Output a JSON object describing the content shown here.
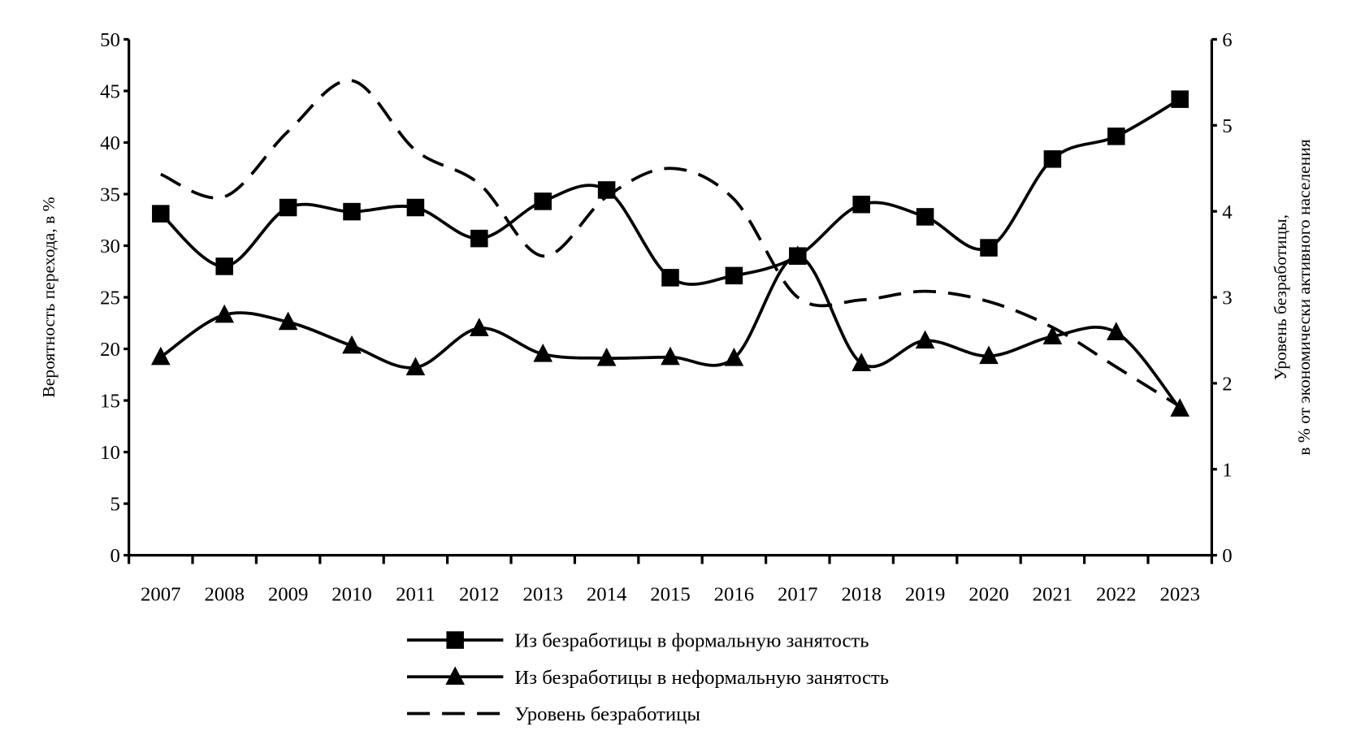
{
  "chart_data": {
    "type": "line",
    "title": "",
    "x": [
      "2007",
      "2008",
      "2009",
      "2010",
      "2011",
      "2012",
      "2013",
      "2014",
      "2015",
      "2016",
      "2017",
      "2018",
      "2019",
      "2020",
      "2021",
      "2022",
      "2023"
    ],
    "ylabel": "Вероятность перехода, в %",
    "ylabel_right_line1": "Уровень безработицы,",
    "ylabel_right_line2": "в % от экономически активного населения",
    "ylim": [
      0,
      50
    ],
    "y_ticks": [
      "0",
      "5",
      "10",
      "15",
      "20",
      "25",
      "30",
      "35",
      "40",
      "45",
      "50"
    ],
    "ylim_right": [
      0,
      6
    ],
    "y_right_ticks": [
      "0",
      "1",
      "2",
      "3",
      "4",
      "5",
      "6"
    ],
    "grid": false,
    "legend_placement": "bottom",
    "series": [
      {
        "name": "Из безработицы в формальную занятость",
        "axis": "left",
        "marker": "square",
        "style": "solid",
        "values": [
          33.1,
          28.0,
          33.7,
          33.3,
          33.7,
          30.7,
          34.3,
          35.4,
          26.9,
          27.1,
          29.0,
          34.0,
          32.8,
          29.8,
          38.4,
          40.6,
          44.2
        ]
      },
      {
        "name": "Из безработицы в неформальную занятость",
        "axis": "left",
        "marker": "triangle",
        "style": "solid",
        "values": [
          19.2,
          23.3,
          22.6,
          20.3,
          18.2,
          22.0,
          19.5,
          19.1,
          19.2,
          19.1,
          29.0,
          18.6,
          20.8,
          19.3,
          21.2,
          21.6,
          14.2
        ]
      },
      {
        "name": "Уровень безработицы",
        "axis": "right",
        "marker": "none",
        "style": "dashed",
        "values": [
          4.43,
          4.17,
          4.93,
          5.52,
          4.71,
          4.32,
          3.48,
          4.17,
          4.5,
          4.14,
          3.0,
          2.97,
          3.07,
          2.95,
          2.65,
          2.19,
          1.73
        ]
      }
    ],
    "colors": {
      "line": "#000000",
      "background": "#ffffff"
    }
  }
}
